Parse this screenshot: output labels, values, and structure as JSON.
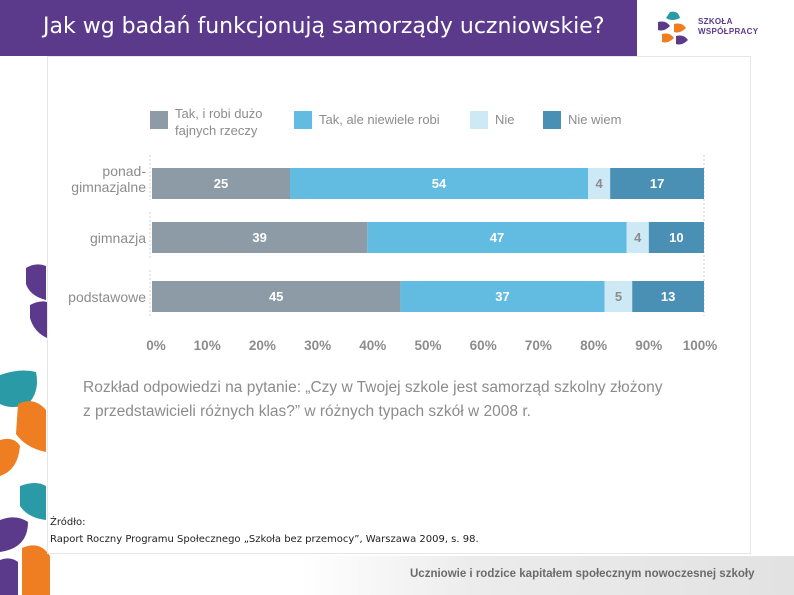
{
  "header": {
    "title": "Jak wg badań funkcjonują samorządy uczniowskie?"
  },
  "logo": {
    "line1": "SZKOŁA",
    "line2": "WSPÓŁPRACY"
  },
  "legend": [
    {
      "label": "Tak, i robi dużo\nfajnych rzeczy",
      "color": "#8c9ba6"
    },
    {
      "label": "Tak, ale niewiele robi",
      "color": "#62bbe0"
    },
    {
      "label": "Nie",
      "color": "#cde9f6"
    },
    {
      "label": "Nie wiem",
      "color": "#4a90b5"
    }
  ],
  "chart_data": {
    "type": "bar",
    "orientation": "horizontal",
    "stacked": true,
    "categories": [
      "ponad-\ngimnazjalne",
      "gimnazja",
      "podstawowe"
    ],
    "series": [
      {
        "name": "Tak, i robi dużo fajnych rzeczy",
        "color": "#8c9ba6",
        "values": [
          25,
          39,
          45
        ]
      },
      {
        "name": "Tak, ale niewiele robi",
        "color": "#62bbe0",
        "values": [
          54,
          47,
          37
        ]
      },
      {
        "name": "Nie",
        "color": "#cde9f6",
        "values": [
          4,
          4,
          5
        ]
      },
      {
        "name": "Nie wiem",
        "color": "#4a90b5",
        "values": [
          17,
          10,
          13
        ]
      }
    ],
    "xticks": [
      "0%",
      "10%",
      "20%",
      "30%",
      "40%",
      "50%",
      "60%",
      "70%",
      "80%",
      "90%",
      "100%"
    ],
    "xlim": [
      0,
      100
    ],
    "legend_position": "top"
  },
  "caption": {
    "line1": "Rozkład odpowiedzi na pytanie: „Czy w Twojej szkole jest samorząd szkolny złożony",
    "line2": "z przedstawicieli różnych klas?” w różnych typach szkół w 2008 r."
  },
  "source": {
    "label": "Źródło:",
    "text": "Raport Roczny Programu Społecznego „Szkoła bez przemocy”, Warszawa 2009, s. 98."
  },
  "footer": {
    "text": "Uczniowie i rodzice kapitałem społecznym nowoczesnej szkoły"
  }
}
